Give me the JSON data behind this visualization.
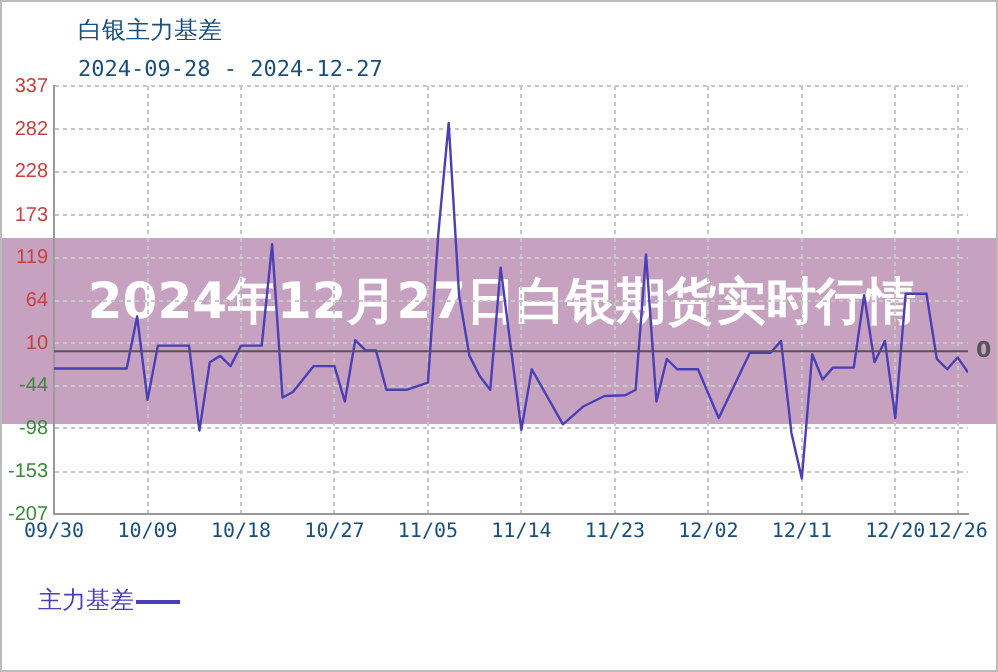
{
  "chart_data": {
    "type": "line",
    "title": "白银主力基差",
    "subtitle": "2024-09-28 - 2024-12-27",
    "annotations": [
      "2024年12月27日白银期货实时行情"
    ],
    "x": [
      "2024-09-30",
      "2024-10-07",
      "2024-10-08",
      "2024-10-09",
      "2024-10-10",
      "2024-10-13",
      "2024-10-14",
      "2024-10-15",
      "2024-10-16",
      "2024-10-17",
      "2024-10-18",
      "2024-10-20",
      "2024-10-21",
      "2024-10-22",
      "2024-10-23",
      "2024-10-25",
      "2024-10-27",
      "2024-10-28",
      "2024-10-29",
      "2024-10-30",
      "2024-10-31",
      "2024-11-01",
      "2024-11-03",
      "2024-11-05",
      "2024-11-06",
      "2024-11-07",
      "2024-11-08",
      "2024-11-09",
      "2024-11-10",
      "2024-11-11",
      "2024-11-12",
      "2024-11-14",
      "2024-11-15",
      "2024-11-18",
      "2024-11-20",
      "2024-11-22",
      "2024-11-24",
      "2024-11-25",
      "2024-11-26",
      "2024-11-27",
      "2024-11-28",
      "2024-11-29",
      "2024-12-01",
      "2024-12-03",
      "2024-12-06",
      "2024-12-08",
      "2024-12-09",
      "2024-12-10",
      "2024-12-11",
      "2024-12-12",
      "2024-12-13",
      "2024-12-14",
      "2024-12-16",
      "2024-12-17",
      "2024-12-18",
      "2024-12-19",
      "2024-12-20",
      "2024-12-21",
      "2024-12-23",
      "2024-12-24",
      "2024-12-25",
      "2024-12-26",
      "2024-12-27"
    ],
    "series": [
      {
        "name": "主力基差",
        "color": "#4a3fb5",
        "values": [
          -22,
          -22,
          44,
          -62,
          7,
          7,
          -101,
          -14,
          -6,
          -19,
          7,
          7,
          136,
          -59,
          -52,
          -19,
          -19,
          -64,
          14,
          1,
          1,
          -49,
          -49,
          -40,
          149,
          290,
          71,
          -6,
          -32,
          -49,
          106,
          -100,
          -23,
          -93,
          -70,
          -57,
          -56,
          -49,
          123,
          -64,
          -10,
          -23,
          -23,
          -85,
          -2,
          -2,
          13,
          -104,
          -162,
          -4,
          -36,
          -21,
          -21,
          71,
          -14,
          13,
          -85,
          73,
          73,
          -10,
          -23,
          -8,
          -27
        ]
      }
    ],
    "xlim": [
      "2024-09-30",
      "2024-12-27"
    ],
    "xticks": [
      {
        "value": "2024-09-30",
        "label": "09/30"
      },
      {
        "value": "2024-10-09",
        "label": "10/09"
      },
      {
        "value": "2024-10-18",
        "label": "10/18"
      },
      {
        "value": "2024-10-27",
        "label": "10/27"
      },
      {
        "value": "2024-11-05",
        "label": "11/05"
      },
      {
        "value": "2024-11-14",
        "label": "11/14"
      },
      {
        "value": "2024-11-23",
        "label": "11/23"
      },
      {
        "value": "2024-12-02",
        "label": "12/02"
      },
      {
        "value": "2024-12-11",
        "label": "12/11"
      },
      {
        "value": "2024-12-20",
        "label": "12/20"
      },
      {
        "value": "2024-12-26",
        "label": "12/26"
      }
    ],
    "ylim": [
      -207,
      337
    ],
    "yticks": [
      -207,
      -153,
      -98,
      -44,
      10,
      64,
      119,
      173,
      228,
      282,
      337
    ],
    "ref_lines": [
      {
        "axis": "y",
        "value": 0,
        "label": "0",
        "color": "#555555"
      }
    ],
    "grid": true,
    "legend": "bottom left",
    "marker": "none",
    "line_style": "solid"
  }
}
